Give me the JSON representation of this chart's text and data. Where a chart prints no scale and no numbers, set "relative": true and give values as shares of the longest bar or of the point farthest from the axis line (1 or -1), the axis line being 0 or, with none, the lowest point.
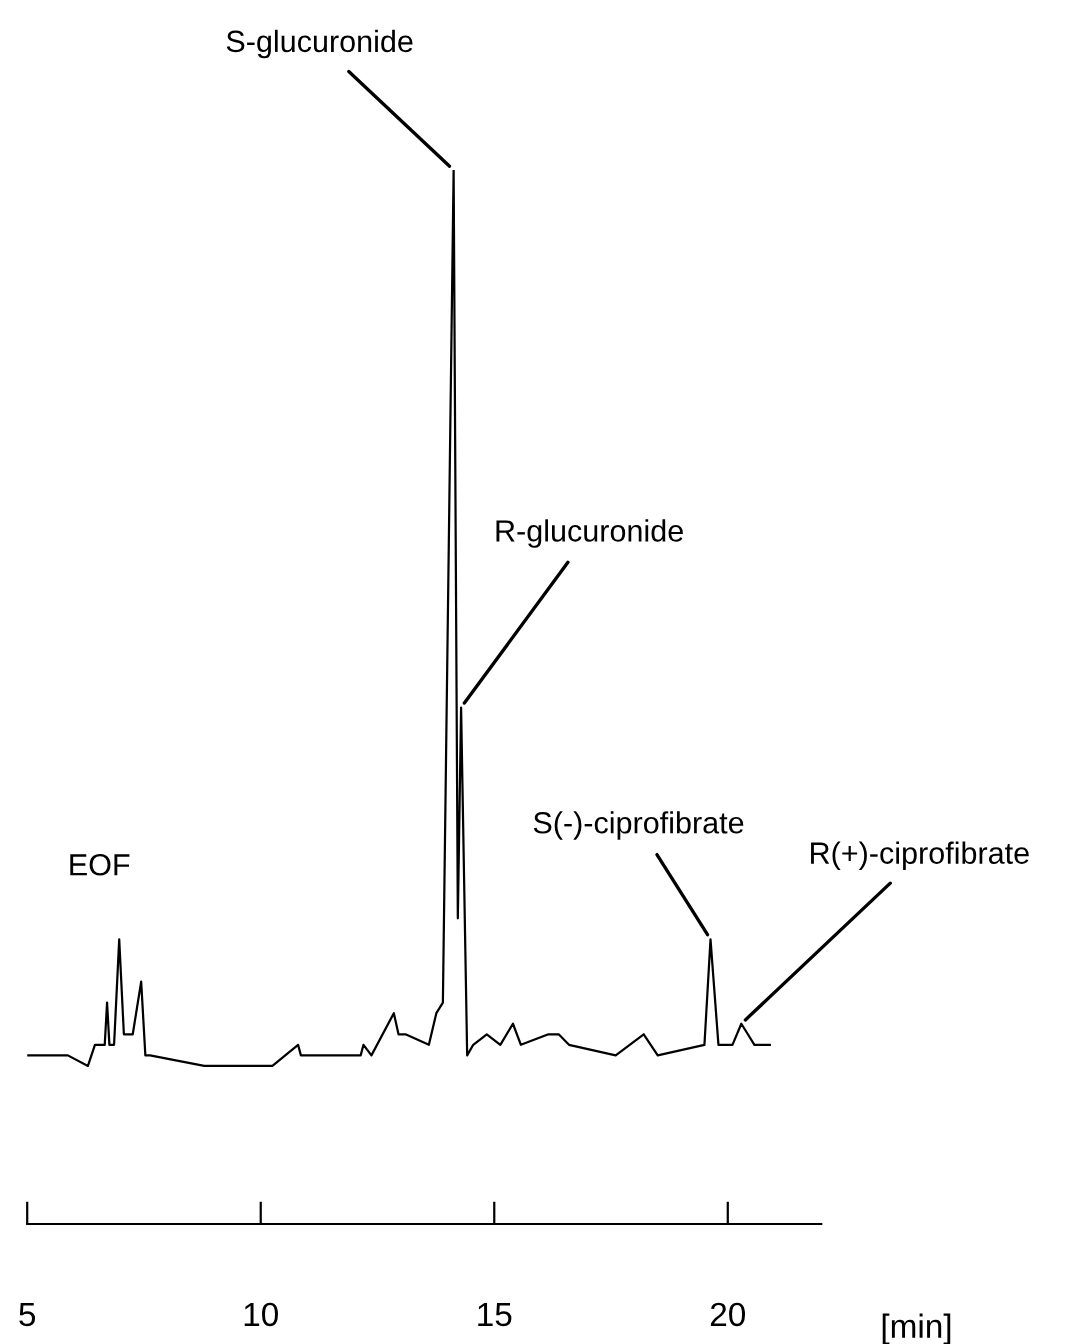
{
  "chart_data": {
    "type": "line",
    "relative": true,
    "xlabel": "[min]",
    "xlim": [
      5,
      22
    ],
    "xticks": [
      5,
      10,
      15,
      20
    ],
    "grid": false,
    "legend": false,
    "marker": "none",
    "line_style": "solid",
    "series": [
      {
        "color": "#000000",
        "x": [
          5.0,
          5.87,
          6.3,
          6.45,
          6.66,
          6.71,
          6.76,
          6.86,
          6.97,
          7.07,
          7.26,
          7.44,
          7.53,
          7.63,
          8.79,
          10.25,
          10.8,
          10.86,
          12.14,
          12.2,
          12.37,
          12.85,
          12.95,
          13.1,
          13.6,
          13.76,
          13.9,
          14.13,
          14.22,
          14.29,
          14.42,
          14.55,
          14.84,
          15.13,
          15.4,
          15.57,
          16.16,
          16.38,
          16.6,
          17.6,
          18.2,
          18.5,
          19.5,
          19.63,
          19.8,
          20.1,
          20.29,
          20.43,
          20.57,
          20.9
        ],
        "values": [
          0.16,
          0.16,
          0.15,
          0.17,
          0.17,
          0.21,
          0.17,
          0.17,
          0.27,
          0.18,
          0.18,
          0.23,
          0.16,
          0.16,
          0.15,
          0.15,
          0.17,
          0.16,
          0.16,
          0.17,
          0.16,
          0.2,
          0.18,
          0.18,
          0.17,
          0.2,
          0.21,
          1.0,
          0.29,
          0.49,
          0.16,
          0.17,
          0.18,
          0.17,
          0.19,
          0.17,
          0.18,
          0.18,
          0.17,
          0.16,
          0.18,
          0.16,
          0.17,
          0.27,
          0.17,
          0.17,
          0.19,
          0.18,
          0.17,
          0.17
        ]
      }
    ],
    "annotations": [
      {
        "text": "S-glucuronide",
        "x": 14.13,
        "y": 1.0
      },
      {
        "text": "R-glucuronide",
        "x": 14.29,
        "y": 0.49
      },
      {
        "text": "EOF",
        "x": 6.97,
        "y": 0.27
      },
      {
        "text": "S(-)-ciprofibrate",
        "x": 19.63,
        "y": 0.27
      },
      {
        "text": "R(+)-ciprofibrate",
        "x": 20.29,
        "y": 0.19
      }
    ]
  }
}
